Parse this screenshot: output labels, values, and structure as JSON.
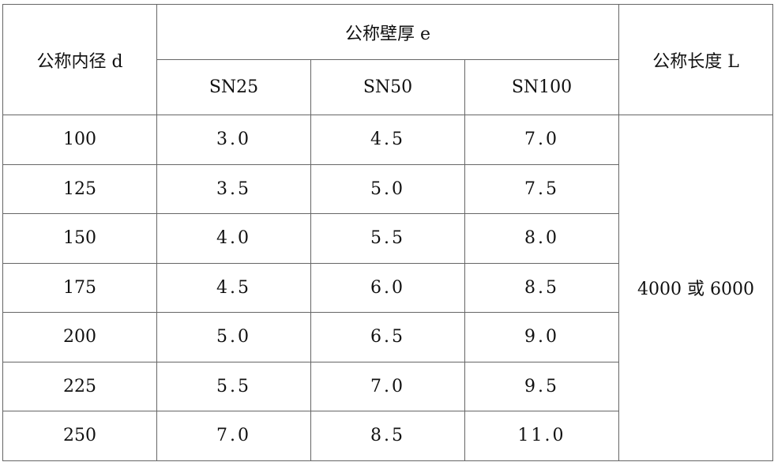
{
  "header": {
    "diameter": "公称内径 d",
    "thickness": "公称壁厚 e",
    "length": "公称长度 L",
    "sn": [
      "SN25",
      "SN50",
      "SN100"
    ]
  },
  "rows": [
    {
      "d": "100",
      "sn25": "3.0",
      "sn50": "4.5",
      "sn100": "7.0"
    },
    {
      "d": "125",
      "sn25": "3.5",
      "sn50": "5.0",
      "sn100": "7.5"
    },
    {
      "d": "150",
      "sn25": "4.0",
      "sn50": "5.5",
      "sn100": "8.0"
    },
    {
      "d": "175",
      "sn25": "4.5",
      "sn50": "6.0",
      "sn100": "8.5"
    },
    {
      "d": "200",
      "sn25": "5.0",
      "sn50": "6.5",
      "sn100": "9.0"
    },
    {
      "d": "225",
      "sn25": "5.5",
      "sn50": "7.0",
      "sn100": "9.5"
    },
    {
      "d": "250",
      "sn25": "7.0",
      "sn50": "8.5",
      "sn100": "11.0"
    }
  ],
  "length_value": "4000 或 6000"
}
